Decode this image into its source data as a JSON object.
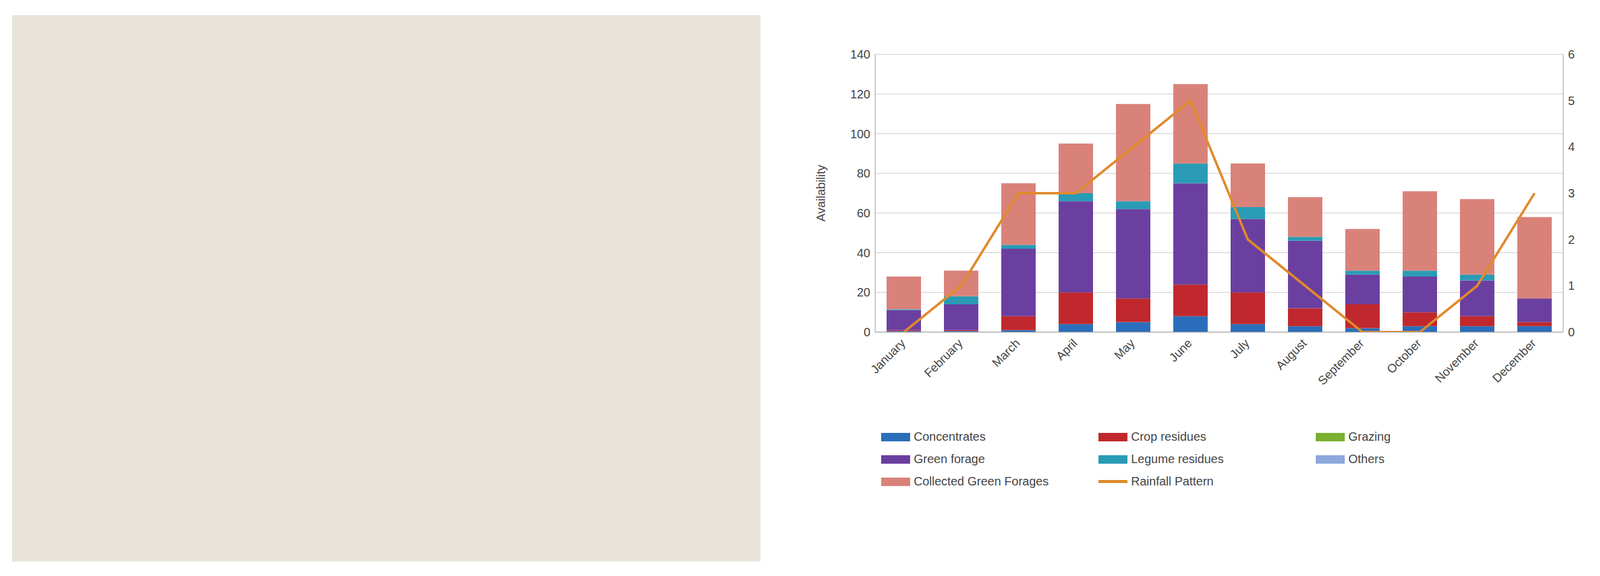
{
  "chart_data": {
    "type": "bar",
    "stacked": true,
    "grid": true,
    "legend": "bottom",
    "y_label": "Availability",
    "categories": [
      "January",
      "February",
      "March",
      "April",
      "May",
      "June",
      "July",
      "August",
      "September",
      "October",
      "November",
      "December"
    ],
    "ylim": [
      0,
      140
    ],
    "yticks": [
      0,
      20,
      40,
      60,
      80,
      100,
      120,
      140
    ],
    "y2lim": [
      0,
      6
    ],
    "y2ticks": [
      0,
      1,
      2,
      3,
      4,
      5,
      6
    ],
    "series": [
      {
        "name": "Concentrates",
        "color": "#2a6ebb",
        "values": [
          0.5,
          0.5,
          1,
          4,
          5,
          8,
          4,
          3,
          2,
          3,
          3,
          3
        ]
      },
      {
        "name": "Crop residues",
        "color": "#c0282d",
        "values": [
          0.5,
          0.5,
          7,
          16,
          12,
          16,
          16,
          9,
          12,
          7,
          5,
          2
        ]
      },
      {
        "name": "Grazing",
        "color": "#7ab030",
        "values": [
          0,
          0,
          0,
          0,
          0,
          0,
          0,
          0,
          0,
          0,
          0,
          0
        ]
      },
      {
        "name": "Green forage",
        "color": "#6b3fa0",
        "values": [
          10,
          13,
          34,
          46,
          45,
          51,
          37,
          34,
          15,
          18,
          18,
          12
        ]
      },
      {
        "name": "Legume residues",
        "color": "#2a9bb5",
        "values": [
          0.5,
          4,
          2,
          4,
          4,
          10,
          6,
          2,
          2,
          3,
          3,
          0
        ]
      },
      {
        "name": "Others",
        "color": "#8fa8dc",
        "values": [
          0,
          0,
          0,
          0,
          0,
          0,
          0,
          0,
          0,
          0,
          0,
          0
        ]
      },
      {
        "name": "Collected Green Forages",
        "color": "#d9827a",
        "values": [
          16.5,
          13,
          31,
          25,
          49,
          40,
          22,
          20,
          21,
          40,
          38,
          41
        ]
      },
      {
        "name": "Rainfall Pattern",
        "color": "#e08a2c",
        "type": "line",
        "axis": "y2",
        "marker": "none",
        "values": [
          0,
          1,
          3,
          3,
          4,
          5,
          2,
          1,
          0,
          0,
          1,
          3
        ]
      }
    ]
  }
}
